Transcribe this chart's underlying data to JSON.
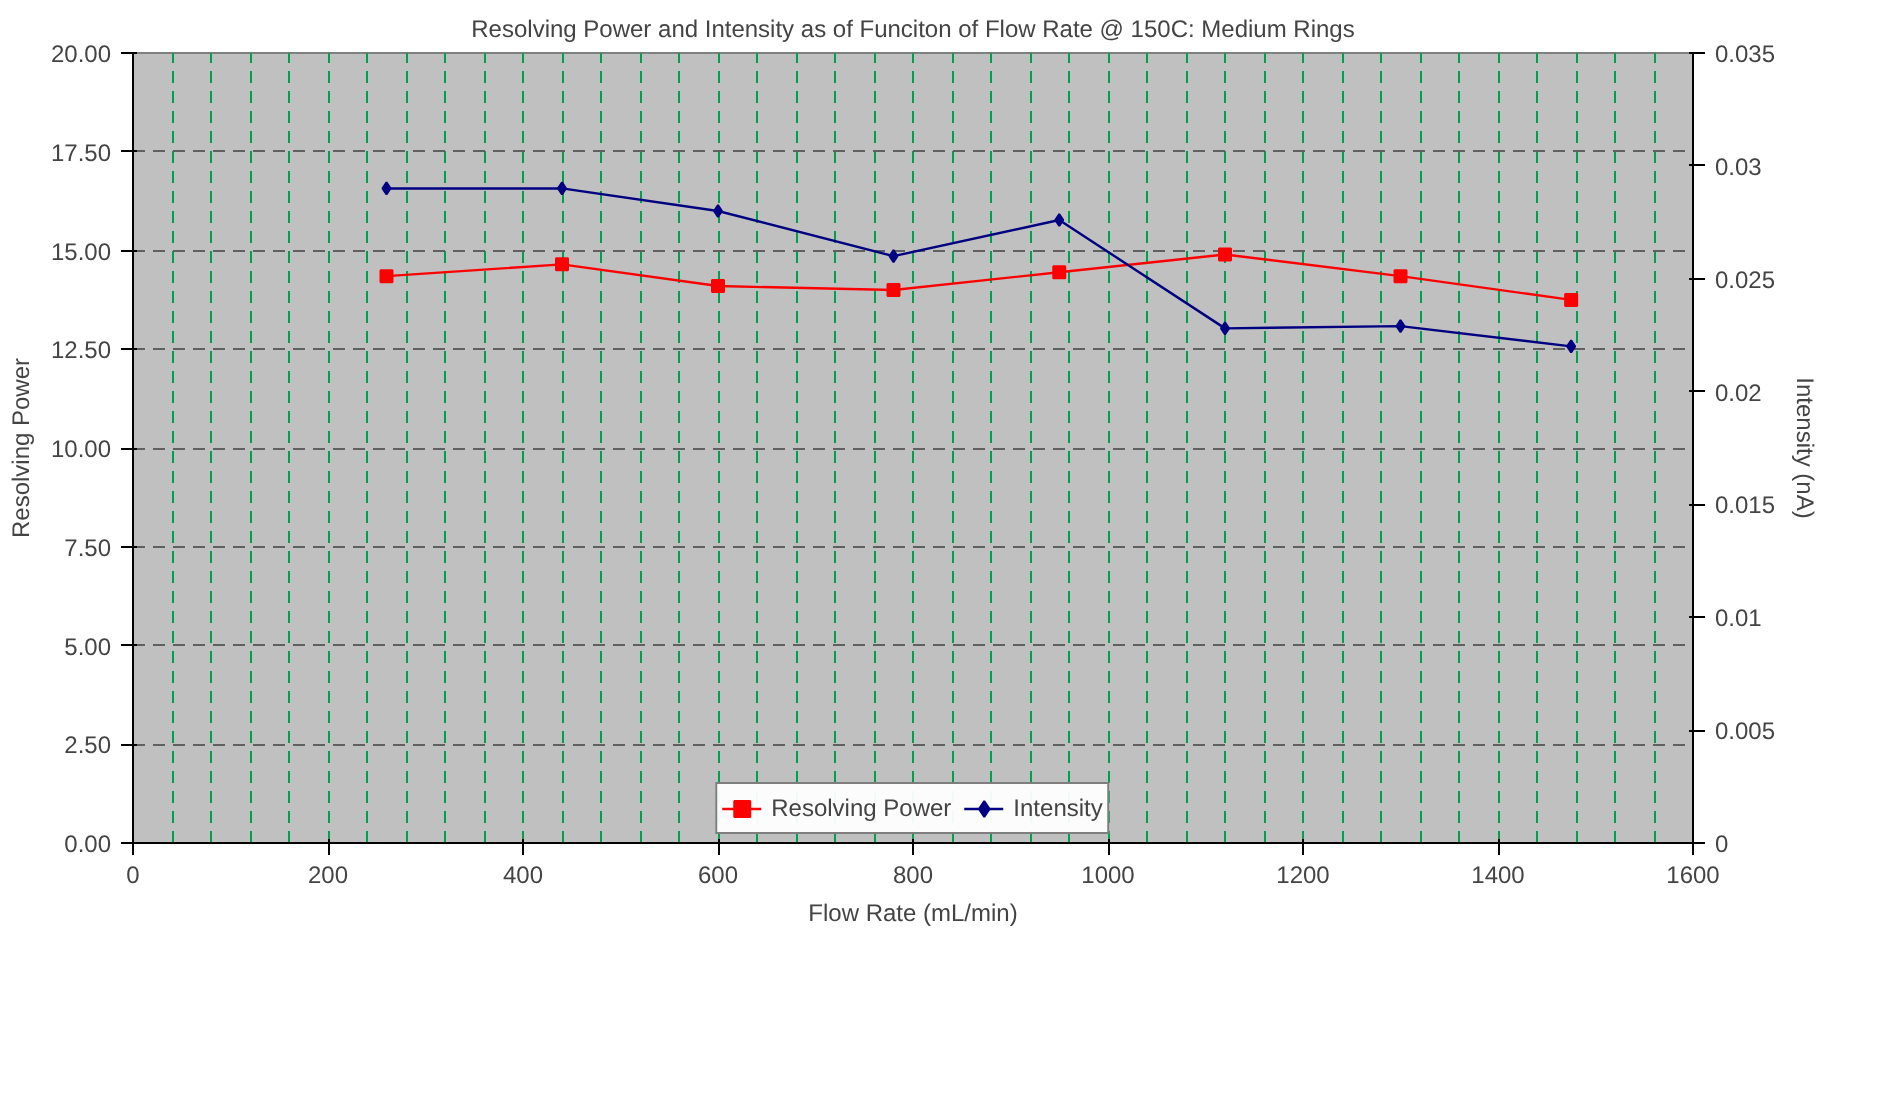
{
  "chart_data": {
    "type": "line",
    "title": "Resolving Power and Intensity as of Funciton of Flow Rate @ 150C: Medium Rings",
    "xlabel": "Flow Rate (mL/min)",
    "ylabel": "Resolving Power",
    "y2label": "Intensity (nA)",
    "x": [
      260,
      440,
      600,
      780,
      950,
      1120,
      1300,
      1475
    ],
    "series": [
      {
        "name": "Resolving Power",
        "color": "#ff0000",
        "marker": "square",
        "values": [
          14.35,
          14.65,
          14.1,
          14.0,
          14.45,
          14.9,
          14.35,
          13.75
        ]
      },
      {
        "name": "Intensity",
        "color": "#000080",
        "marker": "diamond",
        "axis": "y2",
        "values": [
          0.029,
          0.029,
          0.028,
          0.026,
          0.0276,
          0.0228,
          0.0229,
          0.022
        ]
      }
    ],
    "xlim": [
      0,
      1600
    ],
    "xticks": [
      0,
      200,
      400,
      600,
      800,
      1000,
      1200,
      1400,
      1600
    ],
    "ylim": [
      0,
      20
    ],
    "yticks": [
      {
        "value": 0,
        "label": "0.00"
      },
      {
        "value": 2.5,
        "label": "2.50"
      },
      {
        "value": 5,
        "label": "5.00"
      },
      {
        "value": 7.5,
        "label": "7.50"
      },
      {
        "value": 10,
        "label": "10.00"
      },
      {
        "value": 12.5,
        "label": "12.50"
      },
      {
        "value": 15,
        "label": "15.00"
      },
      {
        "value": 17.5,
        "label": "17.50"
      },
      {
        "value": 20,
        "label": "20.00"
      }
    ],
    "y2lim": [
      0,
      0.035
    ],
    "y2ticks": [
      0,
      0.005,
      0.01,
      0.015,
      0.02,
      0.025,
      0.03,
      0.035
    ],
    "grid": true,
    "legend": "bottom",
    "line_style": "solid"
  }
}
